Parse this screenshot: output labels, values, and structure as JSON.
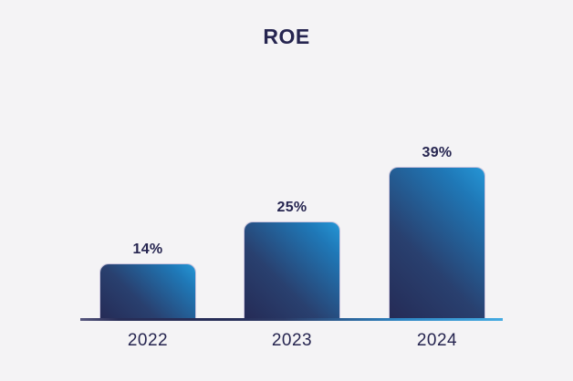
{
  "chart_data": {
    "type": "bar",
    "title": "ROE",
    "categories": [
      "2022",
      "2023",
      "2024"
    ],
    "values": [
      14,
      25,
      39
    ],
    "value_labels": [
      "14%",
      "25%",
      "39%"
    ],
    "xlabel": "",
    "ylabel": "",
    "ylim": [
      0,
      42
    ],
    "grid": false,
    "legend": "none",
    "colors": {
      "background": "#f4f3f5",
      "text": "#262550",
      "bar_gradient_start": "#252b56",
      "bar_gradient_end": "#2596d6",
      "axis_gradient_start": "#4e4e78",
      "axis_gradient_end": "#45abe2"
    }
  }
}
